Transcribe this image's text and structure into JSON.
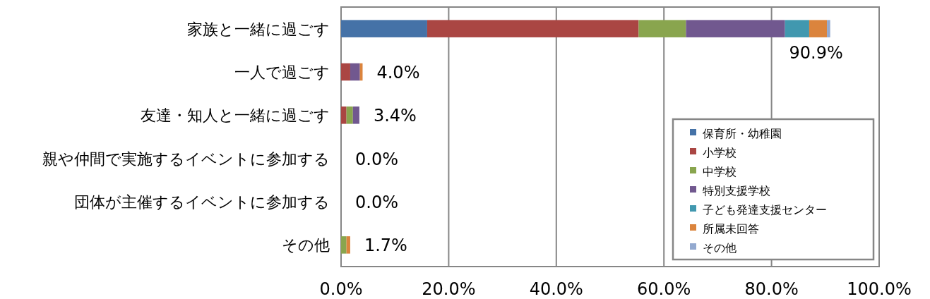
{
  "chart_data": {
    "type": "bar",
    "orientation": "horizontal",
    "stacked": true,
    "categories": [
      "家族と一緒に過ごす",
      "一人で過ごす",
      "友達・知人と一緒に過ごす",
      "親や仲間で実施するイベントに参加する",
      "団体が主催するイベントに参加する",
      "その他"
    ],
    "series": [
      {
        "name": "保育所・幼稚園",
        "color": "#4572a7",
        "values": [
          16.0,
          0,
          0,
          0,
          0,
          0
        ]
      },
      {
        "name": "小学校",
        "color": "#aa4643",
        "values": [
          39.3,
          1.7,
          1.0,
          0,
          0,
          0
        ]
      },
      {
        "name": "中学校",
        "color": "#89a54e",
        "values": [
          8.8,
          0,
          1.2,
          0,
          0,
          1.0
        ]
      },
      {
        "name": "特別支援学校",
        "color": "#71588f",
        "values": [
          18.4,
          1.8,
          1.2,
          0,
          0,
          0
        ]
      },
      {
        "name": "子ども発達支援センター",
        "color": "#4198af",
        "values": [
          4.5,
          0,
          0,
          0,
          0,
          0
        ]
      },
      {
        "name": "所属未回答",
        "color": "#db843d",
        "values": [
          3.3,
          0.5,
          0,
          0,
          0,
          0.7
        ]
      },
      {
        "name": "その他",
        "color": "#93a9cf",
        "values": [
          0.6,
          0,
          0,
          0,
          0,
          0
        ]
      }
    ],
    "totals": [
      "90.9%",
      "4.0%",
      "3.4%",
      "0.0%",
      "0.0%",
      "1.7%"
    ],
    "xlim": [
      0,
      100
    ],
    "xticks": [
      {
        "value": 0,
        "label": "0.0%"
      },
      {
        "value": 20,
        "label": "20.0%"
      },
      {
        "value": 40,
        "label": "40.0%"
      },
      {
        "value": 60,
        "label": "60.0%"
      },
      {
        "value": 80,
        "label": "80.0%"
      },
      {
        "value": 100,
        "label": "100.0%"
      }
    ],
    "grid": "x",
    "legend": "bottom right"
  }
}
